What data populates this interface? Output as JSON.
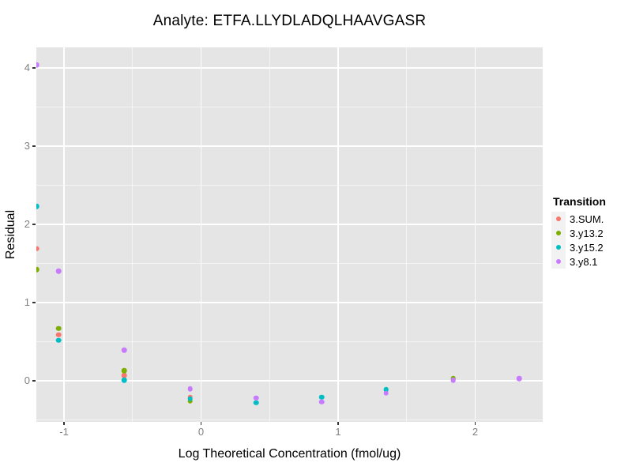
{
  "chart_data": {
    "type": "scatter",
    "title": "Analyte: ETFA.LLYDLADQLHAAVGASR",
    "xlabel": "Log Theoretical Concentration (fmol/ug)",
    "ylabel": "Residual",
    "legend_title": "Transition",
    "legend_position": "right",
    "grid": true,
    "panel_background": "#E5E5E5",
    "major_grid_color": "#FFFFFF",
    "tick_label_color": "#808080",
    "xlim": [
      -1.202,
      2.493
    ],
    "ylim": [
      -0.525,
      4.263
    ],
    "x_ticks": [
      -1,
      0,
      1,
      2
    ],
    "y_ticks": [
      0,
      1,
      2,
      3,
      4
    ],
    "x_minor": [
      -0.5,
      0.5,
      1.5
    ],
    "y_minor": [
      -0.5,
      0.5,
      1.5,
      2.5,
      3.5
    ],
    "series": [
      {
        "name": "3.SUM.",
        "color": "#F8766D",
        "points": [
          [
            -1.2,
            1.69
          ],
          [
            -1.04,
            0.59
          ],
          [
            -0.56,
            0.07
          ],
          [
            -0.08,
            -0.21
          ]
        ]
      },
      {
        "name": "3.y13.2",
        "color": "#7CAE00",
        "points": [
          [
            -1.2,
            1.42
          ],
          [
            -1.04,
            0.67
          ],
          [
            -0.56,
            0.13
          ],
          [
            -0.08,
            -0.26
          ],
          [
            1.84,
            0.03
          ]
        ]
      },
      {
        "name": "3.y15.2",
        "color": "#00BFC4",
        "points": [
          [
            -1.2,
            2.23
          ],
          [
            -1.04,
            0.52
          ],
          [
            -0.56,
            0.01
          ],
          [
            -0.08,
            -0.23
          ],
          [
            0.4,
            -0.28
          ],
          [
            0.88,
            -0.21
          ],
          [
            1.35,
            -0.11
          ]
        ]
      },
      {
        "name": "3.y8.1",
        "color": "#C77CFF",
        "points": [
          [
            -1.2,
            4.04
          ],
          [
            -1.04,
            1.4
          ],
          [
            -0.56,
            0.39
          ],
          [
            -0.08,
            -0.1
          ],
          [
            0.4,
            -0.22
          ],
          [
            0.88,
            -0.27
          ],
          [
            1.35,
            -0.16
          ],
          [
            1.84,
            0.01
          ],
          [
            2.32,
            0.03
          ]
        ]
      }
    ]
  }
}
